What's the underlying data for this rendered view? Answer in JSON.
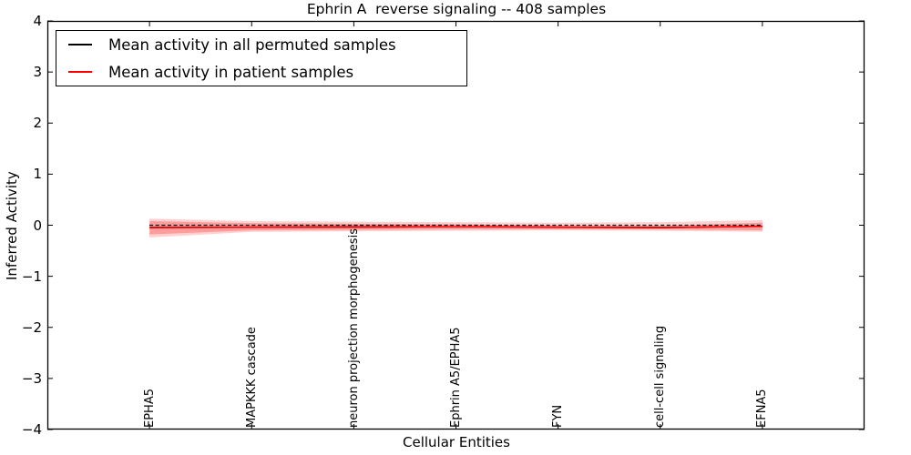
{
  "title": "Ephrin A  reverse signaling -- 408 samples",
  "colors": {
    "permuted_line": "#000000",
    "patient_line": "#ff0000",
    "band_fill": "#ff0000",
    "zero_line": "#000000",
    "axis": "#000000",
    "background": "#ffffff"
  },
  "legend": {
    "position": "upper left",
    "items": [
      {
        "label": "Mean activity in all permuted samples",
        "color": "#000000"
      },
      {
        "label": "Mean activity in patient samples",
        "color": "#ff0000"
      }
    ]
  },
  "chart_data": {
    "type": "line",
    "title": "Ephrin A  reverse signaling -- 408 samples",
    "xlabel": "Cellular Entities",
    "ylabel": "Inferred Activity",
    "categories": [
      "EPHA5",
      "MAPKKK cascade",
      "neuron projection morphogenesis",
      "Ephrin A5/EPHA5",
      "FYN",
      "cell-cell signaling",
      "EFNA5"
    ],
    "xlim": [
      -1,
      7
    ],
    "ylim": [
      -4,
      4
    ],
    "yticks": [
      4,
      3,
      2,
      1,
      0,
      -1,
      -2,
      -3,
      -4
    ],
    "ytick_labels": [
      "4",
      "3",
      "2",
      "1",
      "0",
      "−1",
      "−2",
      "−3",
      "−4"
    ],
    "grid": false,
    "legend_position": "upper left",
    "series": [
      {
        "name": "Mean activity in all permuted samples",
        "color": "#000000",
        "style": "solid",
        "values": [
          -0.04,
          -0.035,
          -0.03,
          -0.03,
          -0.035,
          -0.04,
          -0.025
        ]
      },
      {
        "name": "Mean activity in patient samples",
        "color": "#ff0000",
        "style": "solid",
        "values": [
          -0.05,
          -0.04,
          -0.04,
          -0.03,
          -0.04,
          -0.05,
          -0.02
        ]
      }
    ],
    "zero_line": {
      "value": 0,
      "style": "dashed",
      "color": "#000000",
      "span": "data-range"
    },
    "bands": [
      {
        "name": "patient-std-outer",
        "alpha": 0.18,
        "upper": [
          0.13,
          0.08,
          0.07,
          0.06,
          0.05,
          0.06,
          0.1
        ],
        "lower": [
          -0.24,
          -0.13,
          -0.12,
          -0.11,
          -0.1,
          -0.11,
          -0.13
        ]
      },
      {
        "name": "patient-std-inner",
        "alpha": 0.25,
        "upper": [
          0.08,
          0.04,
          0.03,
          0.02,
          -0.01,
          -0.01,
          0.05
        ],
        "lower": [
          -0.18,
          -0.1,
          -0.09,
          -0.08,
          -0.08,
          -0.08,
          -0.1
        ]
      }
    ]
  }
}
